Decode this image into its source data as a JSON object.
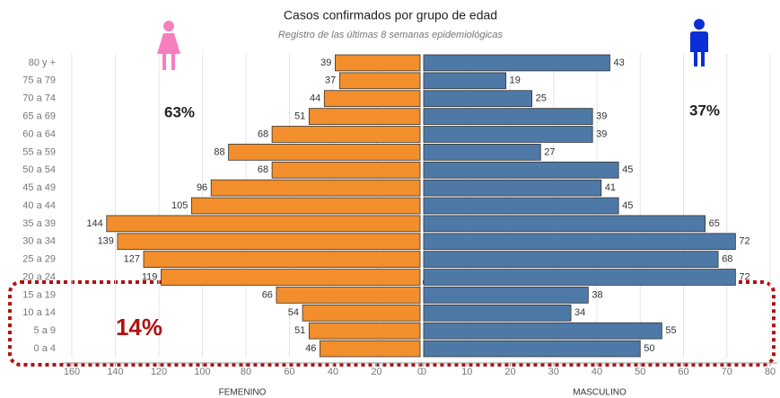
{
  "chart_data": {
    "type": "pyramid",
    "title": "Casos confirmados por grupo de edad",
    "subtitle": "Registro de las últimas 8 semanas epidemiológicas",
    "categories": [
      "80 y +",
      "75 a 79",
      "70 a 74",
      "65 a 69",
      "60 a 64",
      "55 a 59",
      "50 a 54",
      "45 a 49",
      "40 a 44",
      "35 a 39",
      "30 a 34",
      "25 a 29",
      "20 a 24",
      "15 a 19",
      "10 a 14",
      "5 a 9",
      "0 a 4"
    ],
    "series": [
      {
        "name": "FEMENINO",
        "color": "#f28e2b",
        "values": [
          39,
          37,
          44,
          51,
          68,
          88,
          68,
          96,
          105,
          144,
          139,
          127,
          119,
          66,
          54,
          51,
          46
        ],
        "xlim": [
          0,
          160
        ],
        "xticks": [
          160,
          140,
          120,
          100,
          80,
          60,
          40,
          20,
          0
        ]
      },
      {
        "name": "MASCULINO",
        "color": "#4e79a7",
        "values": [
          43,
          19,
          25,
          39,
          39,
          27,
          45,
          41,
          45,
          65,
          72,
          68,
          72,
          38,
          34,
          55,
          50
        ],
        "xlim": [
          0,
          80
        ],
        "xticks": [
          0,
          10,
          20,
          30,
          40,
          50,
          60,
          70,
          80
        ]
      }
    ],
    "annotations": [
      "63%",
      "37%",
      "14%"
    ],
    "grid": true
  }
}
